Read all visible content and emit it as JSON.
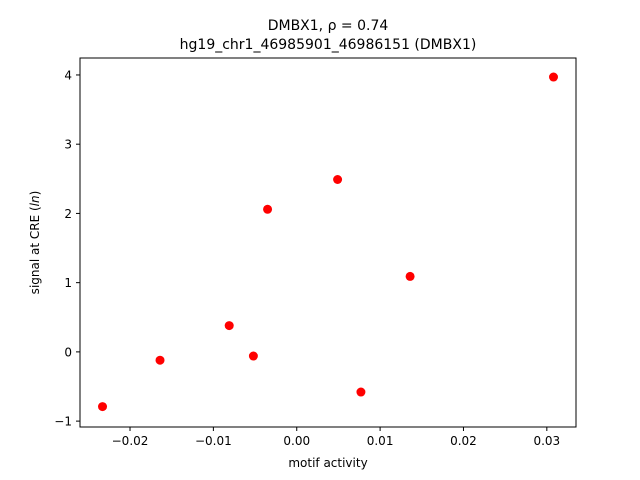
{
  "chart_data": {
    "type": "scatter",
    "title_line1": "DMBX1, ρ = 0.74",
    "title_line2": "hg19_chr1_46985901_46986151 (DMBX1)",
    "xlabel": "motif activity",
    "ylabel_prefix": "signal at CRE (",
    "ylabel_unit": "ln",
    "ylabel_suffix": ")",
    "xlim": [
      -0.026,
      0.0335
    ],
    "ylim": [
      -1.085,
      4.245
    ],
    "x_ticks": [
      {
        "value": -0.02,
        "label": "−0.02"
      },
      {
        "value": -0.01,
        "label": "−0.01"
      },
      {
        "value": 0.0,
        "label": "0.00"
      },
      {
        "value": 0.01,
        "label": "0.01"
      },
      {
        "value": 0.02,
        "label": "0.02"
      },
      {
        "value": 0.03,
        "label": "0.03"
      }
    ],
    "y_ticks": [
      {
        "value": -1,
        "label": "−1"
      },
      {
        "value": 0,
        "label": "0"
      },
      {
        "value": 1,
        "label": "1"
      },
      {
        "value": 2,
        "label": "2"
      },
      {
        "value": 3,
        "label": "3"
      },
      {
        "value": 4,
        "label": "4"
      }
    ],
    "marker_color": "#ff0000",
    "grid": false,
    "points": [
      {
        "x": -0.0233,
        "y": -0.79
      },
      {
        "x": -0.0164,
        "y": -0.12
      },
      {
        "x": -0.0081,
        "y": 0.38
      },
      {
        "x": -0.0052,
        "y": -0.06
      },
      {
        "x": -0.0035,
        "y": 2.06
      },
      {
        "x": 0.0049,
        "y": 2.49
      },
      {
        "x": 0.0077,
        "y": -0.58
      },
      {
        "x": 0.0136,
        "y": 1.09
      },
      {
        "x": 0.0308,
        "y": 3.97
      }
    ]
  }
}
